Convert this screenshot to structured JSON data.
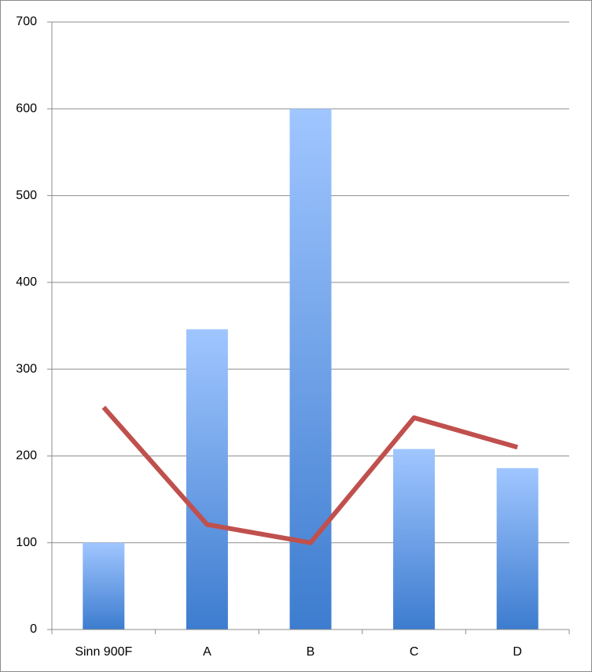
{
  "chart_data": {
    "type": "bar",
    "categories": [
      "Sinn 900F",
      "A",
      "B",
      "C",
      "D"
    ],
    "series": [
      {
        "type": "bar",
        "color": "#3d7ccf",
        "values": [
          100,
          346,
          600,
          208,
          186
        ]
      },
      {
        "type": "line",
        "color": "#c0504d",
        "values": [
          256,
          121,
          100,
          244,
          210
        ]
      }
    ],
    "ylim": [
      0,
      700
    ],
    "yticks": [
      0,
      100,
      200,
      300,
      400,
      500,
      600,
      700
    ],
    "grid": true
  }
}
